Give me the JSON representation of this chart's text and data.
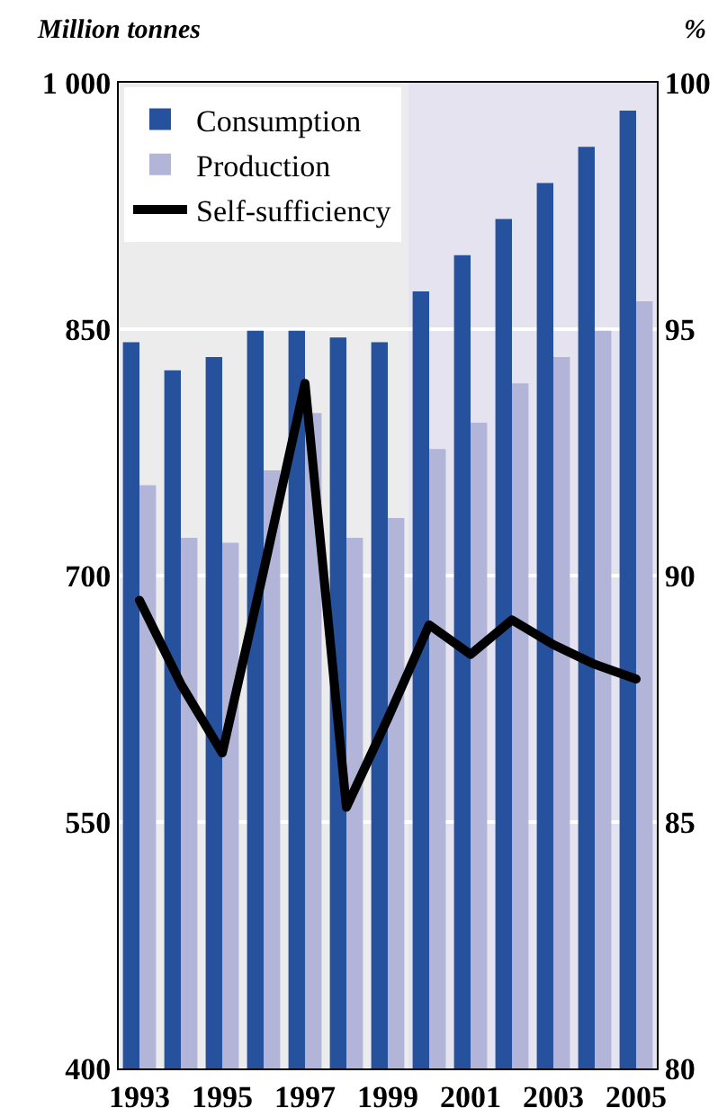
{
  "chart_data": {
    "type": "bar",
    "x": [
      1993,
      1994,
      1995,
      1996,
      1997,
      1998,
      1999,
      2000,
      2001,
      2002,
      2003,
      2004,
      2005
    ],
    "series": [
      {
        "name": "Consumption",
        "color": "#26519c",
        "values": [
          842,
          825,
          833,
          849,
          849,
          845,
          842,
          873,
          895,
          917,
          939,
          961,
          983
        ]
      },
      {
        "name": "Production",
        "color": "#b3b5d8",
        "values": [
          755,
          723,
          720,
          764,
          799,
          723,
          735,
          777,
          793,
          817,
          833,
          849,
          867
        ]
      },
      {
        "name": "Self-sufficiency",
        "type": "line",
        "axis": "y2",
        "color": "#000000",
        "values": [
          89.5,
          87.8,
          86.4,
          90.1,
          93.9,
          85.3,
          87.1,
          89.0,
          88.4,
          89.1,
          88.6,
          88.2,
          87.9
        ]
      }
    ],
    "ylabel": "Million tonnes",
    "y2label": "%",
    "xlim": [
      1992.5,
      2005.5
    ],
    "xticks": [
      1993,
      1995,
      1997,
      1999,
      2001,
      2003,
      2005
    ],
    "ylim": [
      400,
      1000
    ],
    "yticks": [
      400,
      550,
      700,
      850,
      {
        "value": 1000,
        "label": "1 000"
      }
    ],
    "y2lim": [
      80,
      100
    ],
    "y2ticks": [
      80,
      85,
      90,
      95,
      100
    ],
    "bands": [
      {
        "axis": "x",
        "from": 1999.5,
        "to": 2005.5,
        "color": "#e4e3ef"
      }
    ],
    "grid": "y",
    "legend": "top left",
    "marker": "none",
    "line_style": "solid"
  }
}
